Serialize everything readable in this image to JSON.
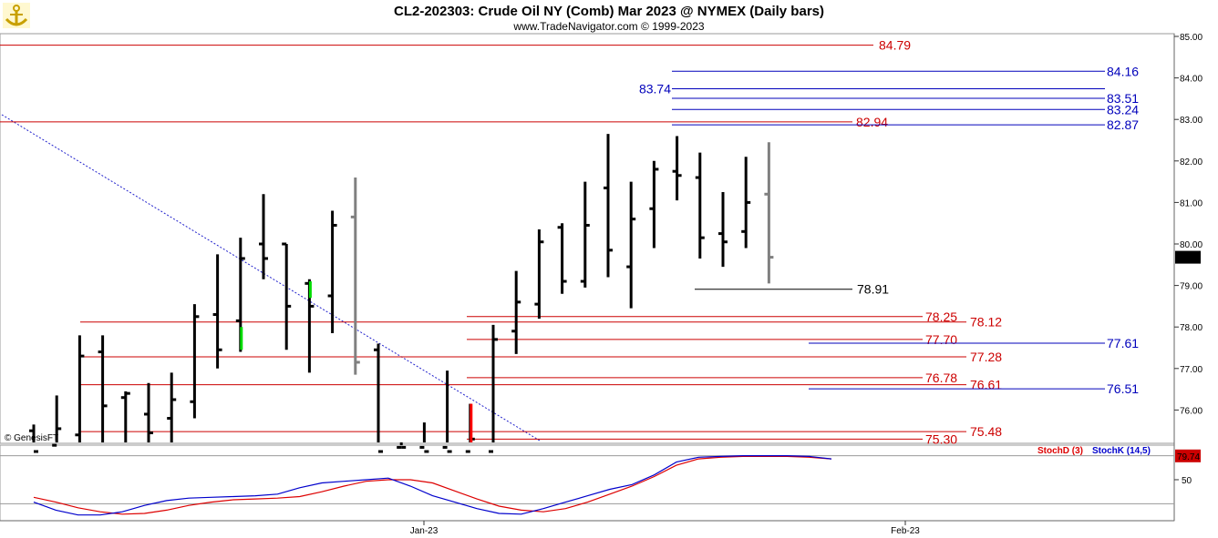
{
  "header": {
    "title": "CL2-202303:  Crude Oil NY (Comb) Mar 2023 @ NYMEX  (Daily bars)",
    "subtitle": "www.TradeNavigator.com © 1999-2023",
    "watermark": "© GenesisFT",
    "logo_icon": "anchor-logo-icon"
  },
  "colors": {
    "bar": "#000000",
    "bar_pending": "#808080",
    "bar_up_highlight": "#00dd00",
    "bar_down_highlight": "#ff0000",
    "red_level": "#cc0000",
    "blue_level": "#0000bb",
    "stoch_d": "#dd0000",
    "stoch_k": "#0000cc"
  },
  "chart_data": [
    {
      "type": "ohlc",
      "ylim": [
        75,
        85
      ],
      "yticks": [
        "85.00",
        "84.00",
        "83.00",
        "82.00",
        "81.00",
        "80.00",
        "79.00",
        "78.00",
        "77.00",
        "76.00"
      ],
      "xticks": [
        "Jan-23",
        "Feb-23"
      ],
      "last_price": "79.68",
      "bars": [
        {
          "o": 75.5,
          "h": 75.65,
          "l": 75.0,
          "c": 75.0
        },
        {
          "o": 75.15,
          "h": 76.35,
          "l": 75.0,
          "c": 75.55
        },
        {
          "o": 75.4,
          "h": 77.8,
          "l": 75.0,
          "c": 77.3
        },
        {
          "o": 77.4,
          "h": 77.8,
          "l": 75.0,
          "c": 76.1
        },
        {
          "o": 76.3,
          "h": 76.45,
          "l": 75.0,
          "c": 76.4
        },
        {
          "o": 75.9,
          "h": 76.65,
          "l": 75.0,
          "c": 75.45
        },
        {
          "o": 75.8,
          "h": 76.9,
          "l": 75.0,
          "c": 76.25
        },
        {
          "o": 76.2,
          "h": 78.55,
          "l": 75.8,
          "c": 78.25
        },
        {
          "o": 78.3,
          "h": 79.75,
          "l": 77.0,
          "c": 77.45
        },
        {
          "o": 78.15,
          "h": 80.15,
          "l": 77.4,
          "c": 79.65
        },
        {
          "o": 80.0,
          "h": 81.2,
          "l": 79.15,
          "c": 79.65
        },
        {
          "o": 80.0,
          "h": 80.0,
          "l": 77.45,
          "c": 78.5
        },
        {
          "o": 79.05,
          "h": 79.15,
          "l": 76.9,
          "c": 78.5
        },
        {
          "o": 78.75,
          "h": 80.8,
          "l": 77.85,
          "c": 80.45
        },
        {
          "o": 80.65,
          "h": 81.6,
          "l": 76.85,
          "c": 77.15
        },
        {
          "o": 77.45,
          "h": 77.6,
          "l": 75.0,
          "c": 75.0
        },
        {
          "o": 75.1,
          "h": 75.15,
          "l": 75.0,
          "c": 75.1
        },
        {
          "o": 75.1,
          "h": 75.7,
          "l": 75.0,
          "c": 75.0
        },
        {
          "o": 75.1,
          "h": 76.95,
          "l": 75.0,
          "c": 75.0
        },
        {
          "o": 75.0,
          "h": 76.15,
          "l": 75.0,
          "c": 75.3
        },
        {
          "o": 75.0,
          "h": 78.05,
          "l": 75.0,
          "c": 77.7
        },
        {
          "o": 77.9,
          "h": 79.35,
          "l": 77.35,
          "c": 78.6
        },
        {
          "o": 78.55,
          "h": 80.35,
          "l": 78.2,
          "c": 80.05
        },
        {
          "o": 80.4,
          "h": 80.5,
          "l": 78.8,
          "c": 79.1
        },
        {
          "o": 79.1,
          "h": 81.5,
          "l": 78.95,
          "c": 80.45
        },
        {
          "o": 81.35,
          "h": 82.65,
          "l": 79.2,
          "c": 79.85
        },
        {
          "o": 79.45,
          "h": 81.5,
          "l": 78.45,
          "c": 80.6
        },
        {
          "o": 80.85,
          "h": 82.0,
          "l": 79.9,
          "c": 81.8
        },
        {
          "o": 81.75,
          "h": 82.6,
          "l": 81.05,
          "c": 81.65
        },
        {
          "o": 81.6,
          "h": 82.2,
          "l": 79.65,
          "c": 80.15
        },
        {
          "o": 80.25,
          "h": 81.25,
          "l": 79.45,
          "c": 80.05
        },
        {
          "o": 80.3,
          "h": 82.1,
          "l": 79.9,
          "c": 81.0
        },
        {
          "o": 81.2,
          "h": 82.45,
          "l": 79.05,
          "c": 79.68
        }
      ],
      "levels": [
        {
          "value": 84.79,
          "label": "84.79",
          "color": "red"
        },
        {
          "value": 84.16,
          "label": "84.16",
          "color": "blue"
        },
        {
          "value": 83.74,
          "label": "83.74",
          "color": "blue"
        },
        {
          "value": 83.51,
          "label": "83.51",
          "color": "blue"
        },
        {
          "value": 83.24,
          "label": "83.24",
          "color": "blue"
        },
        {
          "value": 82.94,
          "label": "82.94",
          "color": "red"
        },
        {
          "value": 82.87,
          "label": "82.87",
          "color": "blue"
        },
        {
          "value": 78.91,
          "label": "78.91",
          "color": "black"
        },
        {
          "value": 78.25,
          "label": "78.25",
          "color": "red"
        },
        {
          "value": 78.12,
          "label": "78.12",
          "color": "red"
        },
        {
          "value": 77.7,
          "label": "77.70",
          "color": "red"
        },
        {
          "value": 77.61,
          "label": "77.61",
          "color": "blue"
        },
        {
          "value": 77.28,
          "label": "77.28",
          "color": "red"
        },
        {
          "value": 76.78,
          "label": "76.78",
          "color": "red"
        },
        {
          "value": 76.61,
          "label": "76.61",
          "color": "red"
        },
        {
          "value": 76.51,
          "label": "76.51",
          "color": "blue"
        },
        {
          "value": 75.48,
          "label": "75.48",
          "color": "red"
        },
        {
          "value": 75.3,
          "label": "75.30",
          "color": "red"
        }
      ]
    },
    {
      "type": "line",
      "title": "",
      "ylim": [
        0,
        100
      ],
      "yticks": [
        "50"
      ],
      "last_value": "79.74",
      "series": [
        {
          "name": "StochD (3)",
          "values": [
            28,
            22,
            15,
            10,
            7,
            8,
            12,
            18,
            22,
            25,
            26,
            27,
            29,
            35,
            42,
            48,
            50,
            50,
            46,
            36,
            26,
            17,
            12,
            10,
            14,
            22,
            32,
            42,
            54,
            68,
            76,
            78,
            79,
            79,
            79,
            78,
            76
          ]
        },
        {
          "name": "StochK (14,5)",
          "values": [
            22,
            12,
            6,
            6,
            10,
            18,
            24,
            27,
            28,
            29,
            30,
            32,
            40,
            46,
            48,
            50,
            52,
            42,
            30,
            22,
            14,
            8,
            7,
            14,
            22,
            30,
            38,
            44,
            56,
            72,
            78,
            79,
            80,
            80,
            80,
            79,
            76
          ]
        }
      ]
    }
  ]
}
